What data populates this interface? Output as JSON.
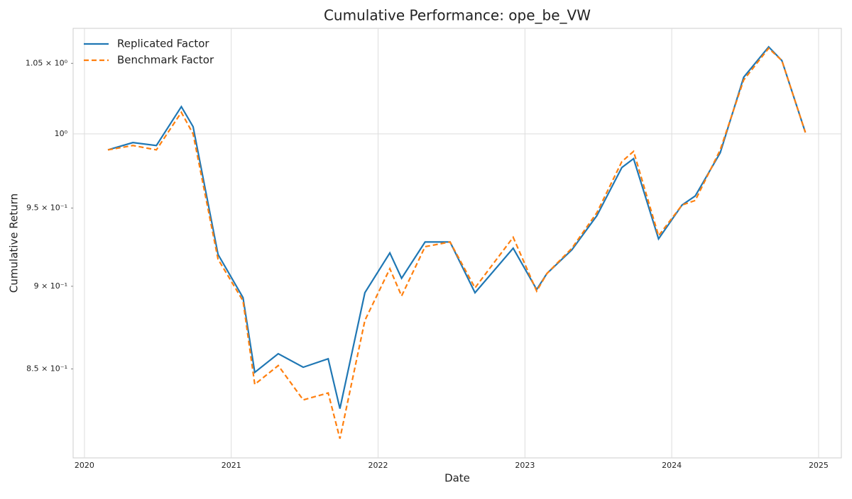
{
  "chart_data": {
    "type": "line",
    "title": "Cumulative Performance: ope_be_VW",
    "x_label": "Date",
    "y_label": "Cumulative Return",
    "x": [
      2020.16,
      2020.33,
      2020.49,
      2020.66,
      2020.74,
      2020.91,
      2021.08,
      2021.16,
      2021.32,
      2021.49,
      2021.66,
      2021.74,
      2021.91,
      2022.08,
      2022.16,
      2022.32,
      2022.49,
      2022.66,
      2022.92,
      2023.08,
      2023.15,
      2023.32,
      2023.49,
      2023.66,
      2023.74,
      2023.91,
      2024.07,
      2024.16,
      2024.33,
      2024.49,
      2024.66,
      2024.75,
      2024.91
    ],
    "series": [
      {
        "name": "Replicated Factor",
        "color": "#1f77b4",
        "dash": false,
        "values": [
          0.989,
          0.994,
          0.992,
          1.019,
          1.005,
          0.92,
          0.893,
          0.848,
          0.859,
          0.851,
          0.856,
          0.827,
          0.896,
          0.921,
          0.905,
          0.928,
          0.928,
          0.896,
          0.924,
          0.898,
          0.908,
          0.923,
          0.945,
          0.977,
          0.983,
          0.93,
          0.952,
          0.958,
          0.987,
          1.04,
          1.062,
          1.052,
          1.001
        ]
      },
      {
        "name": "Benchmark Factor",
        "color": "#ff7f0e",
        "dash": true,
        "values": [
          0.989,
          0.992,
          0.989,
          1.015,
          1.0,
          0.917,
          0.891,
          0.841,
          0.852,
          0.832,
          0.836,
          0.81,
          0.879,
          0.911,
          0.894,
          0.925,
          0.928,
          0.899,
          0.931,
          0.897,
          0.908,
          0.924,
          0.947,
          0.981,
          0.988,
          0.932,
          0.952,
          0.955,
          0.989,
          1.038,
          1.061,
          1.052,
          1.001
        ]
      }
    ],
    "xlim": [
      2019.923,
      2025.155
    ],
    "xticks": [
      2020,
      2021,
      2022,
      2023,
      2024,
      2025
    ],
    "ylim": [
      0.7993,
      1.0757
    ],
    "ylog": true,
    "yticks": [
      {
        "value": 0.85,
        "label": "8.5 × 10⁻¹"
      },
      {
        "value": 0.9,
        "label": "9 × 10⁻¹"
      },
      {
        "value": 0.95,
        "label": "9.5 × 10⁻¹"
      },
      {
        "value": 1,
        "label": "10⁰"
      },
      {
        "value": 1.05,
        "label": "1.05 × 10⁰"
      }
    ],
    "grid": true,
    "legend": "upper left"
  }
}
